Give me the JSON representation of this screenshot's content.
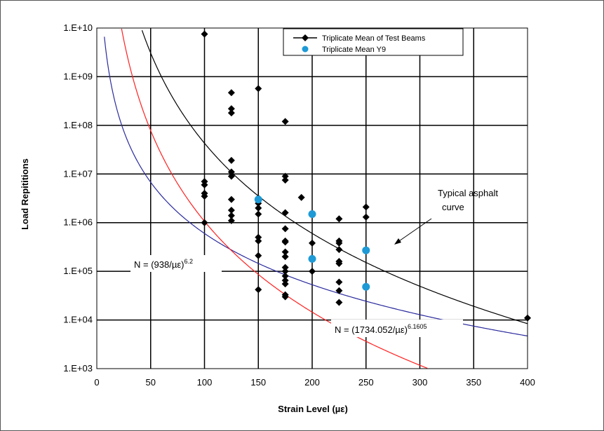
{
  "chart_data": {
    "type": "scatter",
    "title": "",
    "xlabel": "Strain Level (µε)",
    "ylabel": "Load Repititions",
    "xlim": [
      0,
      400
    ],
    "ylim": [
      1000,
      10000000000
    ],
    "y_scale": "log",
    "grid": true,
    "legend_position": "top-right",
    "x_ticks": [
      "0",
      "50",
      "100",
      "150",
      "200",
      "250",
      "300",
      "350",
      "400"
    ],
    "y_ticks": [
      "1.E+03",
      "1.E+04",
      "1.E+05",
      "1.E+06",
      "1.E+07",
      "1.E+08",
      "1.E+09",
      "1.E+10"
    ],
    "colors": {
      "test_beams": "#000000",
      "y9": "#1e9ad6",
      "typical_asphalt": "#2a2a9e",
      "red_curve": "#ff2020",
      "fit_curve": "#000000",
      "grid": "#000000"
    },
    "series": [
      {
        "name": "Triplicate Mean of Test Beams",
        "marker": "diamond",
        "points": [
          [
            100,
            7500000000
          ],
          [
            100,
            7000000
          ],
          [
            100,
            6000000
          ],
          [
            100,
            4000000
          ],
          [
            100,
            3500000
          ],
          [
            100,
            1000000
          ],
          [
            125,
            470000000
          ],
          [
            125,
            220000000
          ],
          [
            125,
            180000000
          ],
          [
            125,
            19000000
          ],
          [
            125,
            11000000
          ],
          [
            125,
            9000000
          ],
          [
            125,
            3000000
          ],
          [
            125,
            1800000
          ],
          [
            125,
            1400000
          ],
          [
            125,
            1100000
          ],
          [
            150,
            570000000
          ],
          [
            150,
            3200000
          ],
          [
            150,
            2500000
          ],
          [
            150,
            2000000
          ],
          [
            150,
            1500000
          ],
          [
            150,
            500000
          ],
          [
            150,
            420000
          ],
          [
            150,
            210000
          ],
          [
            150,
            42000
          ],
          [
            175,
            120000000
          ],
          [
            175,
            9000000
          ],
          [
            175,
            7500000
          ],
          [
            175,
            1600000
          ],
          [
            175,
            750000
          ],
          [
            175,
            420000
          ],
          [
            175,
            400000
          ],
          [
            175,
            250000
          ],
          [
            175,
            200000
          ],
          [
            175,
            120000
          ],
          [
            175,
            100000
          ],
          [
            175,
            80000
          ],
          [
            175,
            65000
          ],
          [
            175,
            55000
          ],
          [
            175,
            33000
          ],
          [
            175,
            30000
          ],
          [
            190,
            3300000
          ],
          [
            200,
            380000
          ],
          [
            200,
            100000
          ],
          [
            225,
            1200000
          ],
          [
            225,
            420000
          ],
          [
            225,
            380000
          ],
          [
            225,
            280000
          ],
          [
            225,
            160000
          ],
          [
            225,
            145000
          ],
          [
            225,
            60000
          ],
          [
            225,
            40000
          ],
          [
            225,
            23000
          ],
          [
            250,
            2100000
          ],
          [
            250,
            1300000
          ],
          [
            400,
            11000
          ]
        ]
      },
      {
        "name": "Triplicate Mean Y9",
        "marker": "circle",
        "points": [
          [
            150,
            3000000
          ],
          [
            200,
            1500000
          ],
          [
            200,
            180000
          ],
          [
            250,
            270000
          ],
          [
            250,
            48000
          ]
        ]
      }
    ],
    "curves": [
      {
        "label": "Typical asphalt curve",
        "coefficient": 6000000000000,
        "exponent": -3.5,
        "color": "#2a2a9e"
      },
      {
        "label": "N = (938/µε)",
        "constant": 938,
        "exponent": 6.2,
        "color": "#ff2020"
      },
      {
        "label": "N = (1734.052/µε)",
        "constant": 1734.052,
        "exponent": 6.1605,
        "color": "#000000"
      }
    ],
    "annotations": {
      "typical_line1": "Typical asphalt",
      "typical_line2": "curve",
      "red_eq_main": "N = (938/µε)",
      "red_eq_sup": "6.2",
      "black_eq_main": "N = (1734.052/µε)",
      "black_eq_sup": "6.1605"
    }
  }
}
